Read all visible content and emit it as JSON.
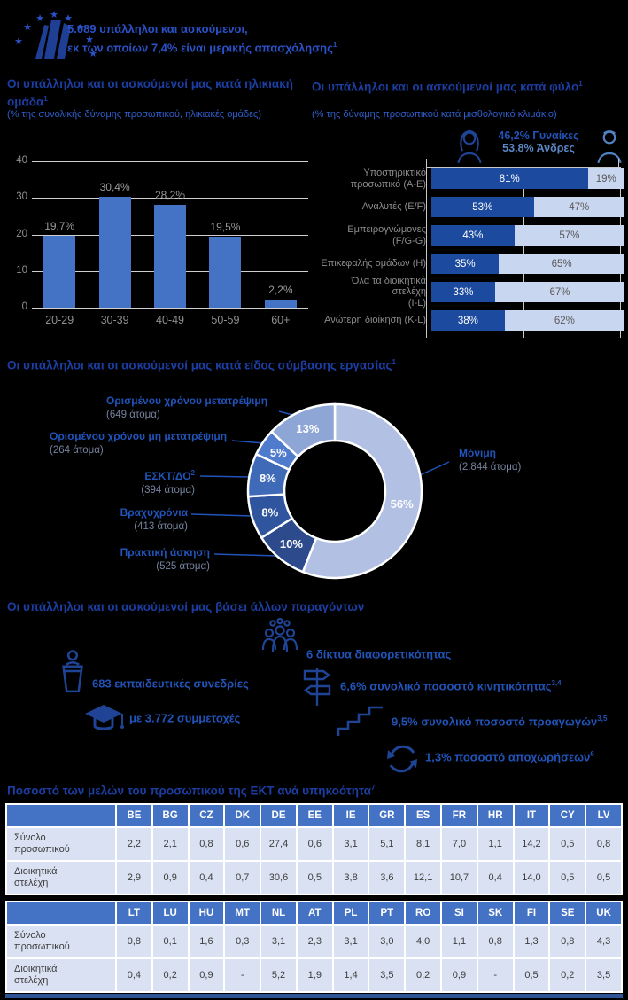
{
  "header": {
    "line1": "5.089 υπάλληλοι και ασκούμενοι,",
    "line2": "εκ των οποίων 7,4% είναι μερικής απασχόλησης",
    "line2_sup": "1",
    "logo_name": "ecb-logo"
  },
  "colors": {
    "title_blue": "#1c3ea2",
    "subtitle_blue": "#2f5ecb",
    "bar_blue": "#4472c4",
    "stack_dark": "#1b4a9e",
    "stack_light": "#c9d6ef",
    "table_header": "#4472c4",
    "table_cell": "#d9e1f2",
    "table_bottom_bar": "#2f5597"
  },
  "chart_data": [
    {
      "type": "bar",
      "title": "Οι υπάλληλοι και οι ασκούμενοί μας κατά ηλικιακή ομάδα",
      "title_sup": "1",
      "subtitle": "(% της συνολικής δύναμης προσωπικού, ηλικιακές ομάδες)",
      "categories": [
        "20-29",
        "30-39",
        "40-49",
        "50-59",
        "60+"
      ],
      "values": [
        19.7,
        30.4,
        28.2,
        19.5,
        2.2
      ],
      "labels": [
        "19,7%",
        "30,4%",
        "28,2%",
        "19,5%",
        "2,2%"
      ],
      "ylim": [
        0,
        40
      ],
      "yticks": [
        0,
        10,
        20,
        30,
        40
      ],
      "grid": true,
      "legend": "none"
    },
    {
      "type": "stacked-bar",
      "title": "Οι υπάλληλοι και οι ασκούμενοί μας κατά φύλο",
      "title_sup": "1",
      "subtitle": "(% της δύναμης προσωπικού κατά μισθολογικό κλιμάκιο)",
      "legend_women": "46,2% Γυναίκες",
      "legend_men": "53,8% Άνδρες",
      "categories": [
        [
          "Υποστηρικτικό",
          "προσωπικό (A-E)"
        ],
        [
          "Αναλυτές (E/F)"
        ],
        [
          "Εμπειρογνώμονες",
          "(F/G-G)"
        ],
        [
          "Επικεφαλής ομάδων (H)"
        ],
        [
          "Όλα τα διοικητικά στελέχη",
          "(I-L)"
        ],
        [
          "Ανώτερη διοίκηση (K-L)"
        ]
      ],
      "series": [
        {
          "name": "Γυναίκες",
          "values": [
            81,
            53,
            43,
            35,
            33,
            38
          ],
          "labels": [
            "81%",
            "53%",
            "43%",
            "35%",
            "33%",
            "38%"
          ]
        },
        {
          "name": "Άνδρες",
          "values": [
            19,
            47,
            57,
            65,
            67,
            62
          ],
          "labels": [
            "19%",
            "47%",
            "57%",
            "65%",
            "67%",
            "62%"
          ]
        }
      ],
      "xlim": [
        0,
        100
      ]
    },
    {
      "type": "donut",
      "title": "Οι υπάλληλοι και οι ασκούμενοί μας κατά είδος σύμβασης εργασίας",
      "title_sup": "1",
      "segments": [
        {
          "label": "Μόνιμη",
          "label_sup": "",
          "count": "(2.844 άτομα)",
          "pct": 56,
          "pct_label": "56%",
          "color": "#b2c0e3"
        },
        {
          "label": "Πρακτική άσκηση",
          "label_sup": "",
          "count": "(525 άτομα)",
          "pct": 10,
          "pct_label": "10%",
          "color": "#2c4a8c"
        },
        {
          "label": "Βραχυχρόνια",
          "label_sup": "",
          "count": "(413 άτομα)",
          "pct": 8,
          "pct_label": "8%",
          "color": "#30559f"
        },
        {
          "label": "ΕΣΚΤ/ΔΟ",
          "label_sup": "2",
          "count": "(394 άτομα)",
          "pct": 8,
          "pct_label": "8%",
          "color": "#3f6ab8"
        },
        {
          "label": "Ορισμένου χρόνου μη μετατρέψιμη",
          "label_sup": "",
          "count": "(264 άτομα)",
          "pct": 5,
          "pct_label": "5%",
          "color": "#4f7bcd"
        },
        {
          "label": "Ορισμένου χρόνου μετατρέψιμη",
          "label_sup": "",
          "count": "(649 άτομα)",
          "pct": 13,
          "pct_label": "13%",
          "color": "#8ea6d6"
        }
      ]
    }
  ],
  "other_factors": {
    "title": "Οι υπάλληλοι και οι ασκούμενοί μας βάσει άλλων παραγόντων",
    "items": [
      {
        "icon": "podium-speaker-icon",
        "text": "683 εκπαιδευτικές συνεδρίες",
        "sup": ""
      },
      {
        "icon": "graduation-cap-icon",
        "text": "με 3.772 συμμετοχές",
        "sup": ""
      },
      {
        "icon": "diversity-people-icon",
        "text": "6 δίκτυα διαφορετικότητας",
        "sup": ""
      },
      {
        "icon": "signpost-icon",
        "text": "6,6% συνολικό ποσοστό κινητικότητας",
        "sup": "3,4"
      },
      {
        "icon": "stairs-icon",
        "text": "9,5% συνολικό ποσοστό προαγωγών",
        "sup": "3,5"
      },
      {
        "icon": "turnover-arrows-icon",
        "text": "1,3% ποσοστό αποχωρήσεων",
        "sup": "6"
      }
    ]
  },
  "nationality_table": {
    "title": "Ποσοστό των μελών του προσωπικού της ΕΚΤ ανά υπηκοότητα",
    "title_sup": "7",
    "row_labels": [
      [
        "Σύνολο",
        "προσωπικού"
      ],
      [
        "Διοικητικά",
        "στελέχη"
      ]
    ],
    "part1": {
      "countries": [
        "BE",
        "BG",
        "CZ",
        "DK",
        "DE",
        "EE",
        "IE",
        "GR",
        "ES",
        "FR",
        "HR",
        "IT",
        "CY",
        "LV"
      ],
      "rows": [
        [
          "2,2",
          "2,1",
          "0,8",
          "0,6",
          "27,4",
          "0,6",
          "3,1",
          "5,1",
          "8,1",
          "7,0",
          "1,1",
          "14,2",
          "0,5",
          "0,8"
        ],
        [
          "2,9",
          "0,9",
          "0,4",
          "0,7",
          "30,6",
          "0,5",
          "3,8",
          "3,6",
          "12,1",
          "10,7",
          "0,4",
          "14,0",
          "0,5",
          "0,5"
        ]
      ]
    },
    "part2": {
      "countries": [
        "LT",
        "LU",
        "HU",
        "MT",
        "NL",
        "AT",
        "PL",
        "PT",
        "RO",
        "SI",
        "SK",
        "FI",
        "SE",
        "UK"
      ],
      "rows": [
        [
          "0,8",
          "0,1",
          "1,6",
          "0,3",
          "3,1",
          "2,3",
          "3,1",
          "3,0",
          "4,0",
          "1,1",
          "0,8",
          "1,3",
          "0,8",
          "4,3"
        ],
        [
          "0,4",
          "0,2",
          "0,9",
          "-",
          "5,2",
          "1,9",
          "1,4",
          "3,5",
          "0,2",
          "0,9",
          "-",
          "0,5",
          "0,2",
          "3,5"
        ]
      ]
    }
  }
}
